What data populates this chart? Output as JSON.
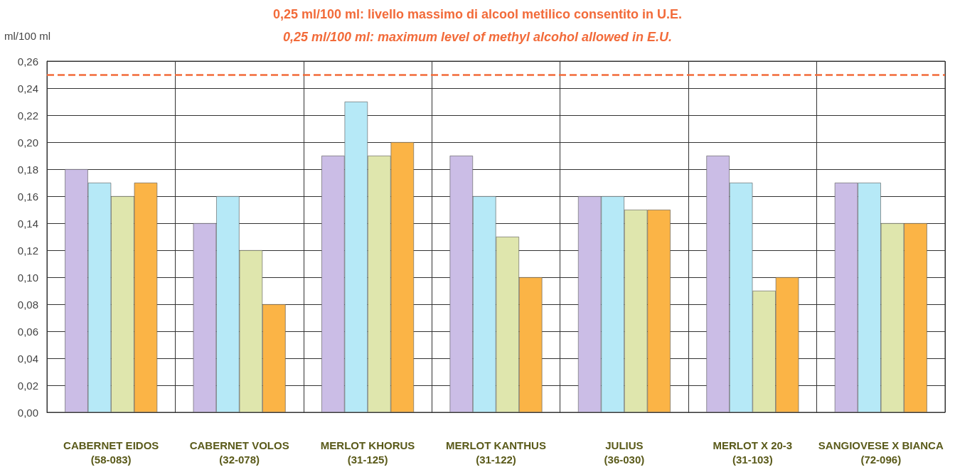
{
  "chart_data": {
    "type": "bar",
    "title": "0,25 ml/100 ml: livello massimo di alcool metilico consentito in U.E.",
    "subtitle": "0,25 ml/100 ml: maximum level of methyl alcohol allowed in E.U.",
    "ylabel": "ml/100 ml",
    "categories": [
      "CABERNET EIDOS\n(58-083)",
      "CABERNET VOLOS\n(32-078)",
      "MERLOT KHORUS\n(31-125)",
      "MERLOT KANTHUS\n(31-122)",
      "JULIUS\n(36-030)",
      "MERLOT X 20-3\n(31-103)",
      "SANGIOVESE X BIANCA\n(72-096)"
    ],
    "series": [
      {
        "color": "#cbbde6",
        "values": [
          0.18,
          0.14,
          0.19,
          0.19,
          0.16,
          0.19,
          0.17
        ]
      },
      {
        "color": "#b6e9f7",
        "values": [
          0.17,
          0.16,
          0.23,
          0.16,
          0.16,
          0.17,
          0.17
        ]
      },
      {
        "color": "#dfe6ad",
        "values": [
          0.16,
          0.12,
          0.19,
          0.13,
          0.15,
          0.09,
          0.14
        ]
      },
      {
        "color": "#fbb446",
        "values": [
          0.17,
          0.08,
          0.2,
          0.1,
          0.15,
          0.1,
          0.14
        ]
      }
    ],
    "ylim": [
      0,
      0.26
    ],
    "yticks": [
      {
        "value": 0,
        "label": "0,00"
      },
      {
        "value": 0.02,
        "label": "0,02"
      },
      {
        "value": 0.04,
        "label": "0,04"
      },
      {
        "value": 0.06,
        "label": "0,06"
      },
      {
        "value": 0.08,
        "label": "0,08"
      },
      {
        "value": 0.1,
        "label": "0,10"
      },
      {
        "value": 0.12,
        "label": "0,12"
      },
      {
        "value": 0.14,
        "label": "0,14"
      },
      {
        "value": 0.16,
        "label": "0,16"
      },
      {
        "value": 0.18,
        "label": "0,18"
      },
      {
        "value": 0.2,
        "label": "0,20"
      },
      {
        "value": 0.22,
        "label": "0,22"
      },
      {
        "value": 0.24,
        "label": "0,24"
      },
      {
        "value": 0.26,
        "label": "0,26"
      }
    ],
    "ref_lines": [
      {
        "axis": "y",
        "value": 0.25,
        "color": "#f26b3a",
        "line_style": "dashed"
      }
    ],
    "grid": true
  }
}
